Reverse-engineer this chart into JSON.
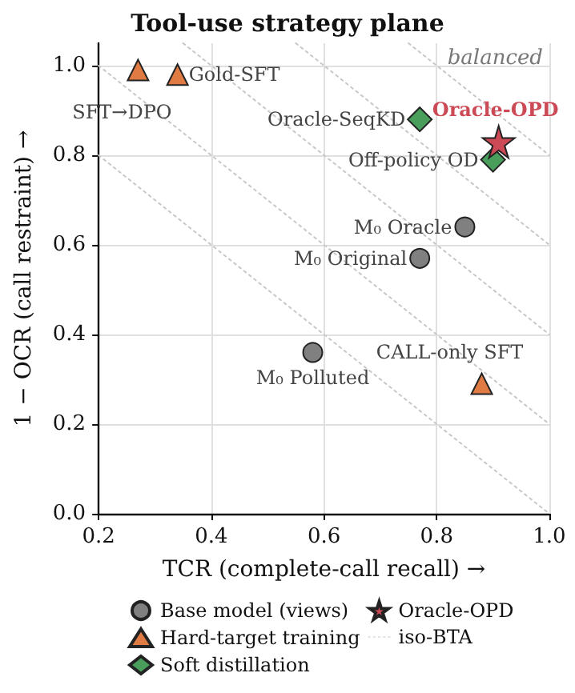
{
  "chart_data": {
    "type": "scatter",
    "title": "Tool-use strategy plane",
    "xlabel": "TCR (complete-call recall) →",
    "ylabel": "1 − OCR (call restraint) →",
    "xlim": [
      0.2,
      1.0
    ],
    "ylim": [
      0,
      1.05
    ],
    "xticks": [
      {
        "value": 0.2,
        "label": "0.2"
      },
      {
        "value": 0.4,
        "label": "0.4"
      },
      {
        "value": 0.6,
        "label": "0.6"
      },
      {
        "value": 0.8,
        "label": "0.8"
      },
      {
        "value": 1.0,
        "label": "1.0"
      }
    ],
    "yticks": [
      {
        "value": 0,
        "label": "0.0"
      },
      {
        "value": 0.2,
        "label": "0.2"
      },
      {
        "value": 0.4,
        "label": "0.4"
      },
      {
        "value": 0.6,
        "label": "0.6"
      },
      {
        "value": 0.8,
        "label": "0.8"
      },
      {
        "value": 1.0,
        "label": "1.0"
      }
    ],
    "grid": true,
    "legend": "bottom",
    "series": [
      {
        "name": "Base model (views)",
        "marker": "circle",
        "color": "#808080",
        "x": [
          0.85,
          0.77,
          0.58
        ],
        "values": [
          0.64,
          0.57,
          0.36
        ]
      },
      {
        "name": "Hard-target training",
        "marker": "triangle",
        "color": "#e07b44",
        "x": [
          0.27,
          0.34,
          0.88
        ],
        "values": [
          0.99,
          0.98,
          0.29
        ]
      },
      {
        "name": "Soft distillation",
        "marker": "diamond",
        "color": "#4a9e5c",
        "x": [
          0.77,
          0.9
        ],
        "values": [
          0.88,
          0.79
        ]
      },
      {
        "name": "Oracle-OPD",
        "marker": "star",
        "color": "#cc4a55",
        "x": [
          0.91
        ],
        "values": [
          0.83
        ]
      },
      {
        "name": "iso-BTA",
        "type": "line",
        "marker": "none",
        "line_style": "dotted",
        "color": "#c8c8c8",
        "x": [
          0.2,
          1.0
        ],
        "values": [
          0.8,
          0
        ]
      },
      {
        "type": "line",
        "marker": "none",
        "line_style": "dotted",
        "color": "#c8c8c8",
        "x": [
          0.2,
          1.0
        ],
        "values": [
          1.0,
          0.2
        ]
      },
      {
        "type": "line",
        "marker": "none",
        "line_style": "dotted",
        "color": "#c8c8c8",
        "x": [
          0.35,
          1.0
        ],
        "values": [
          1.05,
          0.4
        ]
      },
      {
        "type": "line",
        "marker": "none",
        "line_style": "dotted",
        "color": "#c8c8c8",
        "x": [
          0.55,
          1.0
        ],
        "values": [
          1.05,
          0.6
        ]
      },
      {
        "type": "line",
        "marker": "none",
        "line_style": "dotted",
        "color": "#c8c8c8",
        "x": [
          0.75,
          1.0
        ],
        "values": [
          1.05,
          0.8
        ]
      }
    ],
    "annotations": [
      "balanced",
      {
        "text": "M₀ Oracle",
        "x": 0.85,
        "y": 0.64
      },
      {
        "text": "M₀ Original",
        "x": 0.77,
        "y": 0.57
      },
      {
        "text": "M₀ Polluted",
        "x": 0.58,
        "y": 0.36
      },
      {
        "text": "SFT→DPO",
        "x": 0.27,
        "y": 0.99
      },
      {
        "text": "Gold-SFT",
        "x": 0.34,
        "y": 0.98
      },
      {
        "text": "CALL-only SFT",
        "x": 0.88,
        "y": 0.29
      },
      {
        "text": "Oracle-SeqKD",
        "x": 0.77,
        "y": 0.88
      },
      {
        "text": "Off-policy OD",
        "x": 0.9,
        "y": 0.79
      },
      {
        "text": "Oracle-OPD",
        "x": 0.91,
        "y": 0.83
      }
    ]
  }
}
